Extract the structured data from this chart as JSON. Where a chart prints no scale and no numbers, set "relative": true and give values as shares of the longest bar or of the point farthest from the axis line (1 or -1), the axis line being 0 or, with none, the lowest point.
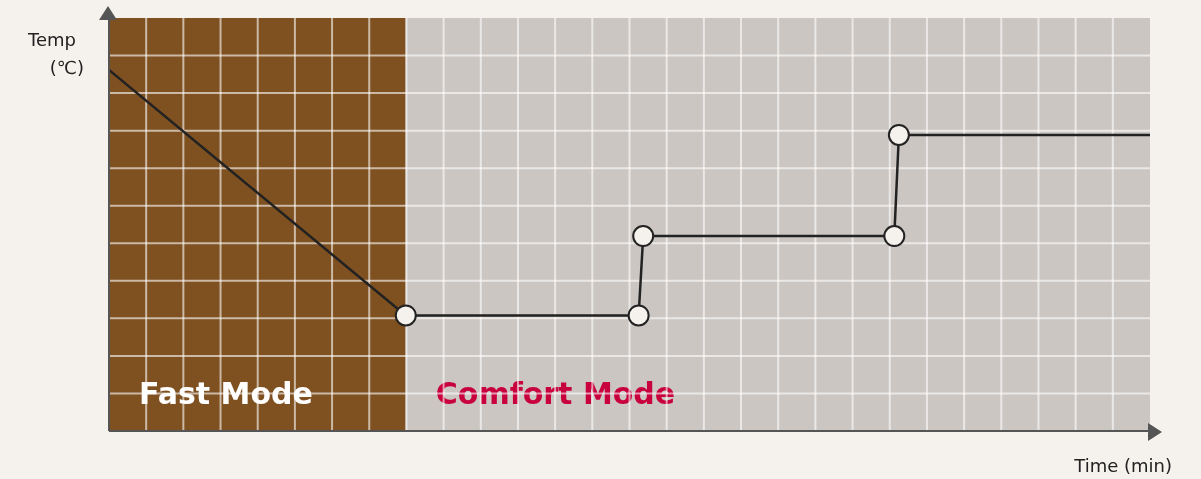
{
  "chart_data": {
    "type": "line",
    "relative": true,
    "ylabel": "Temp\n(℃)",
    "xlabel": "Time (min)",
    "grid": true,
    "line_style": "solid",
    "marker": "circle",
    "annotations": [
      "Fast Mode",
      "Comfort Mode"
    ],
    "categories": [
      null,
      null,
      null,
      null,
      null,
      null,
      null,
      null,
      null,
      null,
      null,
      null,
      null,
      null,
      null,
      null,
      null,
      null,
      null,
      null,
      null,
      null,
      null,
      null,
      null,
      null,
      null,
      null,
      null,
      null,
      null,
      null,
      null,
      null,
      null,
      null,
      null,
      null,
      null,
      null,
      null,
      null,
      null,
      null,
      null,
      null,
      null,
      null,
      null,
      null,
      null,
      null,
      null,
      null,
      null,
      null,
      null,
      null,
      null,
      null,
      null,
      null,
      null,
      null,
      null,
      null,
      null,
      null,
      null,
      null,
      null,
      null,
      null,
      null,
      null,
      null,
      null,
      null,
      null,
      null,
      null,
      null,
      null,
      null,
      null,
      null,
      null,
      null,
      null,
      null,
      null,
      null,
      null,
      null,
      null,
      null,
      null,
      null,
      null,
      null,
      null,
      null,
      null,
      null,
      null,
      null,
      null,
      null,
      null,
      null,
      null,
      null,
      null,
      null,
      null,
      null,
      null,
      null,
      null,
      null,
      null,
      null,
      null,
      null,
      null,
      null,
      null,
      null,
      null,
      null,
      null,
      null,
      null,
      null,
      null,
      null,
      null,
      null,
      null,
      null,
      null,
      null,
      null,
      null,
      null,
      null,
      null,
      null,
      null,
      null,
      null,
      null,
      null,
      null,
      null,
      null,
      null,
      null,
      null,
      null,
      null,
      null,
      null,
      null,
      null,
      null,
      null,
      null,
      null,
      null,
      null,
      null,
      null,
      null,
      null,
      null,
      null,
      null,
      null,
      null,
      null,
      null,
      null,
      null,
      null,
      null,
      null,
      null,
      null,
      null,
      null,
      null,
      null,
      null,
      null,
      null,
      null,
      null,
      null,
      null,
      null,
      null,
      null,
      null,
      null,
      null,
      null,
      null,
      null,
      null,
      null,
      null,
      null,
      null,
      null,
      null,
      null,
      null,
      null,
      null,
      null,
      null,
      null,
      null,
      null,
      null,
      null,
      null,
      null
    ],
    "series": [
      {
        "color": "#222222",
        "values": [
          1,
          null,
          null,
          null,
          null,
          null,
          null,
          null,
          null,
          null,
          null,
          null,
          null,
          null,
          null,
          null,
          null,
          null,
          null,
          null,
          null,
          null,
          null,
          null,
          null,
          null,
          null,
          null,
          null,
          null,
          null,
          null,
          null,
          null,
          null,
          null,
          null,
          null,
          null,
          null,
          null,
          null,
          null,
          null,
          null,
          null,
          null,
          null,
          null,
          null,
          null,
          null,
          null,
          null,
          null,
          null,
          null,
          null,
          null,
          null,
          null,
          null,
          null,
          null,
          null,
          0.32,
          null,
          null,
          null,
          null,
          null,
          null,
          null,
          null,
          null,
          null,
          null,
          null,
          null,
          null,
          null,
          null,
          null,
          null,
          null,
          null,
          null,
          null,
          null,
          null,
          null,
          null,
          null,
          null,
          null,
          null,
          null,
          null,
          null,
          null,
          null,
          null,
          null,
          null,
          null,
          null,
          null,
          null,
          null,
          null,
          null,
          null,
          null,
          null,
          null,
          null,
          0.32,
          0.54,
          null,
          null,
          null,
          null,
          null,
          null,
          null,
          null,
          null,
          null,
          null,
          null,
          null,
          null,
          null,
          null,
          null,
          null,
          null,
          null,
          null,
          null,
          null,
          null,
          null,
          null,
          null,
          null,
          null,
          null,
          null,
          null,
          null,
          null,
          null,
          null,
          null,
          null,
          null,
          null,
          null,
          null,
          null,
          null,
          null,
          null,
          null,
          null,
          null,
          null,
          null,
          null,
          null,
          null,
          0.54,
          0.82,
          null,
          null,
          null,
          null,
          null,
          null,
          null,
          null,
          null,
          null,
          null,
          null,
          null,
          null,
          null,
          null,
          null,
          null,
          null,
          null,
          null,
          null,
          null,
          null,
          null,
          null,
          null,
          null,
          null,
          null,
          null,
          null,
          null,
          null,
          null,
          null,
          null,
          null,
          null,
          null,
          null,
          null,
          null,
          null,
          null,
          null,
          null,
          null,
          null,
          null,
          null,
          null,
          null,
          null,
          0.82
        ]
      }
    ]
  }
}
